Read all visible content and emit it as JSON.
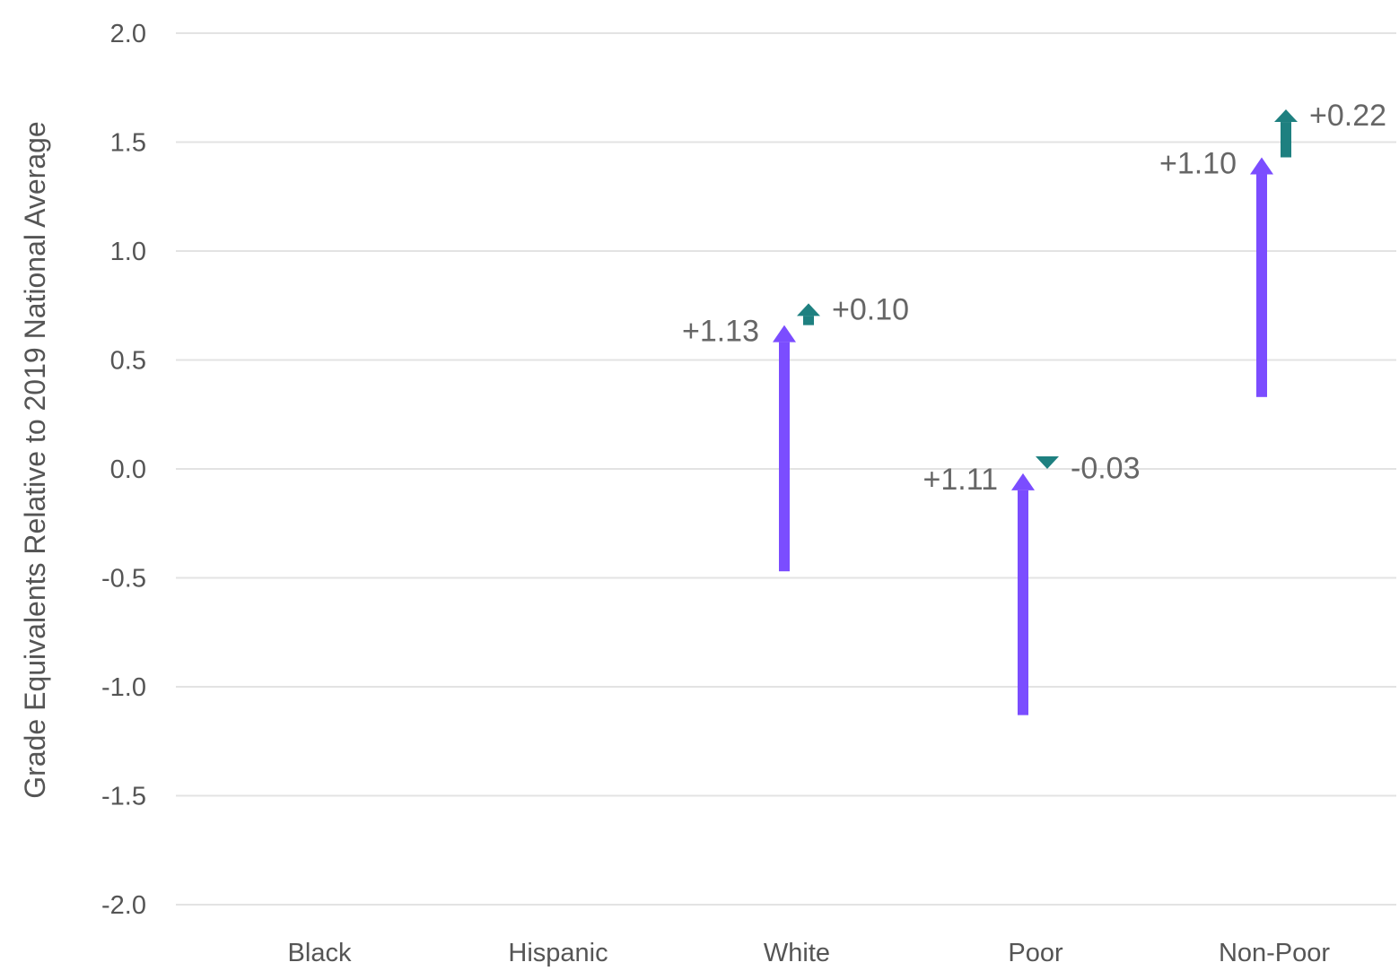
{
  "chart_data": {
    "type": "arrow",
    "ylabel": "Grade Equivalents Relative to 2019 National Average",
    "ylim": [
      -2.0,
      2.0
    ],
    "yticks": [
      2.0,
      1.5,
      1.0,
      0.5,
      0.0,
      -0.5,
      -1.0,
      -1.5,
      -2.0
    ],
    "ytick_labels": [
      "2.0",
      "1.5",
      "1.0",
      "0.5",
      "0.0",
      "-0.5",
      "-1.0",
      "-1.5",
      "-2.0"
    ],
    "grid": true,
    "categories": [
      "Black",
      "Hispanic",
      "White",
      "Poor",
      "Non-Poor"
    ],
    "series": [
      {
        "color": "#7b4dff",
        "arrows": [
          {
            "category": "White",
            "start": -0.47,
            "end": 0.66,
            "label": "+1.13"
          },
          {
            "category": "Poor",
            "start": -1.13,
            "end": -0.02,
            "label": "+1.11"
          },
          {
            "category": "Non-Poor",
            "start": 0.33,
            "end": 1.43,
            "label": "+1.10"
          }
        ]
      },
      {
        "color": "#1e8080",
        "arrows": [
          {
            "category": "White",
            "start": 0.66,
            "end": 0.76,
            "label": "+0.10"
          },
          {
            "category": "Poor",
            "start": 0.03,
            "end": 0.0,
            "label": "-0.03"
          },
          {
            "category": "Non-Poor",
            "start": 1.43,
            "end": 1.65,
            "label": "+0.22"
          }
        ]
      }
    ]
  }
}
